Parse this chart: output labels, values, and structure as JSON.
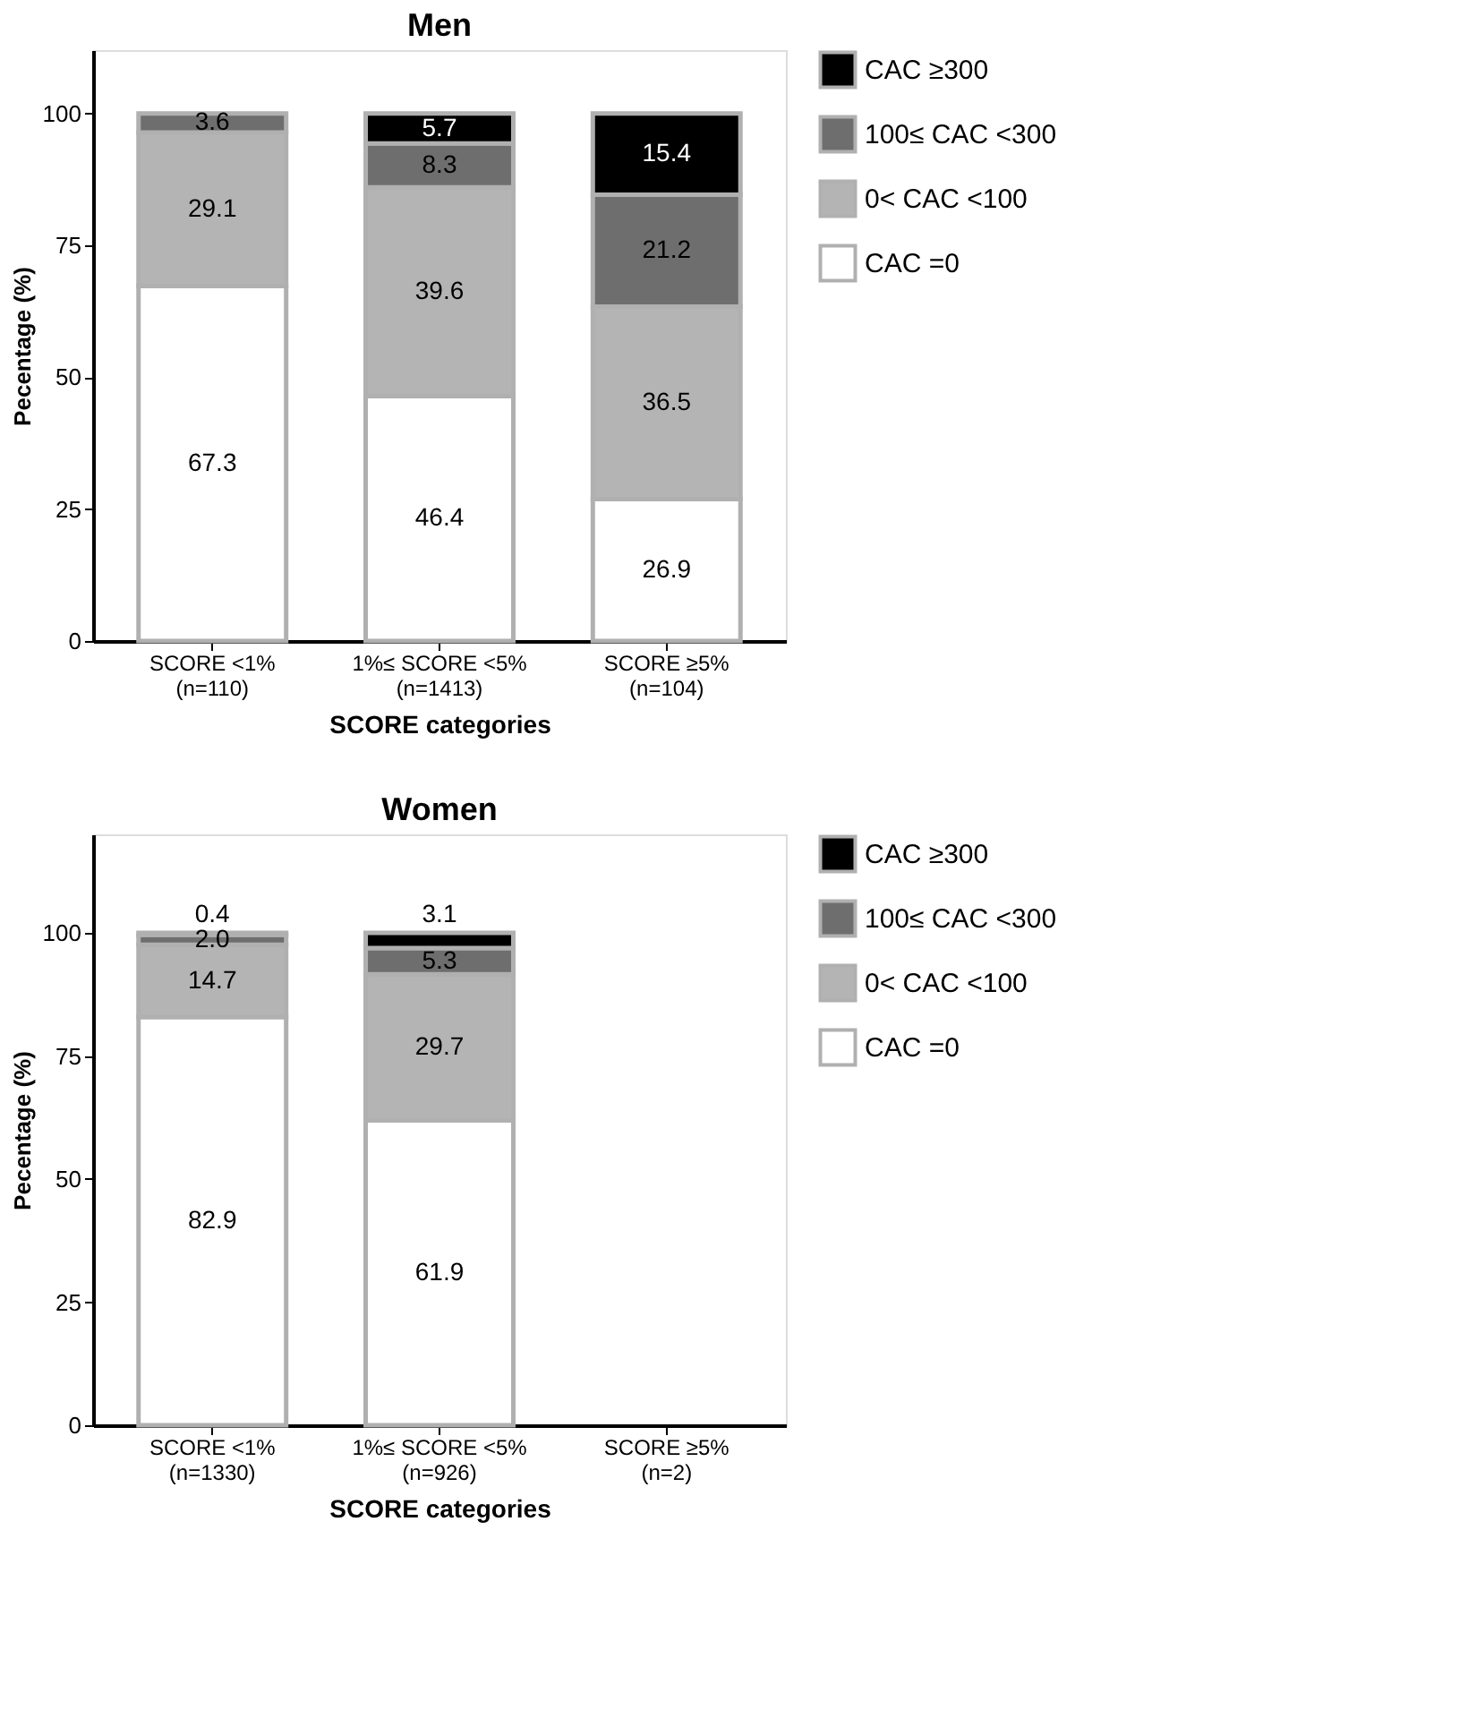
{
  "chart_data": [
    {
      "type": "bar",
      "stacked": true,
      "title": "Men",
      "xlabel": "SCORE categories",
      "ylabel": "Pecentage (%)",
      "categories": [
        "SCORE <1%\n(n=110)",
        "1%≤ SCORE <5%\n(n=1413)",
        "SCORE ≥5%\n(n=104)"
      ],
      "series": [
        {
          "name": "CAC =0",
          "color": "#ffffff",
          "values": [
            67.3,
            46.4,
            26.9
          ],
          "value_labels": [
            "67.3",
            "46.4",
            "26.9"
          ]
        },
        {
          "name": "0< CAC <100",
          "color": "#b4b4b4",
          "values": [
            29.1,
            39.6,
            36.5
          ],
          "value_labels": [
            "29.1",
            "39.6",
            "36.5"
          ]
        },
        {
          "name": "100≤ CAC <300",
          "color": "#6e6e6e",
          "values": [
            3.6,
            8.3,
            21.2
          ],
          "value_labels": [
            "3.6",
            "8.3",
            "21.2"
          ]
        },
        {
          "name": "CAC ≥300",
          "color": "#000000",
          "values": [
            null,
            5.7,
            15.4
          ],
          "value_labels": [
            null,
            "5.7",
            "15.4"
          ]
        }
      ],
      "ylim": [
        0,
        112
      ],
      "yticks": [
        0,
        25,
        50,
        75,
        100
      ],
      "legend": "top right"
    },
    {
      "type": "bar",
      "stacked": true,
      "title": "Women",
      "xlabel": "SCORE categories",
      "ylabel": "Pecentage (%)",
      "categories": [
        "SCORE <1%\n(n=1330)",
        "1%≤ SCORE <5%\n(n=926)",
        "SCORE ≥5%\n(n=2)"
      ],
      "series": [
        {
          "name": "CAC =0",
          "color": "#ffffff",
          "values": [
            82.9,
            61.9,
            null
          ],
          "value_labels": [
            "82.9",
            "61.9",
            null
          ]
        },
        {
          "name": "0< CAC <100",
          "color": "#b4b4b4",
          "values": [
            14.7,
            29.7,
            null
          ],
          "value_labels": [
            "14.7",
            "29.7",
            null
          ]
        },
        {
          "name": "100≤ CAC <300",
          "color": "#6e6e6e",
          "values": [
            2.0,
            5.3,
            null
          ],
          "value_labels": [
            "2.0",
            "5.3",
            null
          ]
        },
        {
          "name": "CAC ≥300",
          "color": "#000000",
          "values": [
            0.4,
            3.1,
            null
          ],
          "value_labels": [
            "0.4",
            "3.1",
            null
          ]
        }
      ],
      "ylim": [
        0,
        120
      ],
      "yticks": [
        0,
        25,
        50,
        75,
        100
      ],
      "legend": "top right"
    }
  ]
}
